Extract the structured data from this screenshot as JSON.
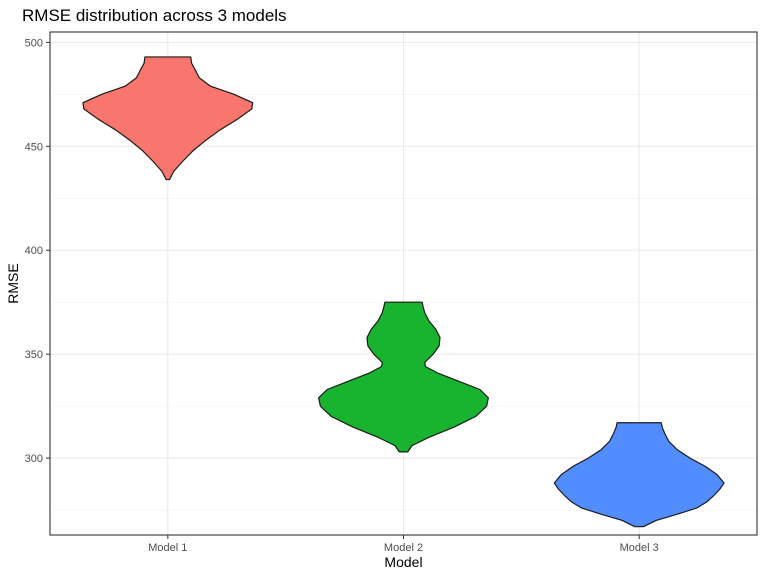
{
  "chart_data": {
    "type": "violin",
    "title": "RMSE distribution across 3 models",
    "xlabel": "Model",
    "ylabel": "RMSE",
    "ylim": [
      263,
      505
    ],
    "yticks": [
      300,
      350,
      400,
      450,
      500
    ],
    "grid": true,
    "legend": "none",
    "categories": [
      "Model 1",
      "Model 2",
      "Model 3"
    ],
    "series": [
      {
        "category": "Model 1",
        "color": "#F8766D",
        "min": 434,
        "max": 493,
        "profile": [
          [
            434,
            0.02
          ],
          [
            438,
            0.07
          ],
          [
            443,
            0.18
          ],
          [
            448,
            0.3
          ],
          [
            453,
            0.45
          ],
          [
            458,
            0.62
          ],
          [
            463,
            0.82
          ],
          [
            468,
            0.99
          ],
          [
            471,
            1.0
          ],
          [
            475,
            0.78
          ],
          [
            479,
            0.5
          ],
          [
            483,
            0.37
          ],
          [
            487,
            0.32
          ],
          [
            490,
            0.28
          ],
          [
            493,
            0.27
          ]
        ]
      },
      {
        "category": "Model 2",
        "color": "#18B32F",
        "min": 303,
        "max": 375,
        "profile": [
          [
            303,
            0.05
          ],
          [
            306,
            0.1
          ],
          [
            310,
            0.3
          ],
          [
            315,
            0.6
          ],
          [
            320,
            0.85
          ],
          [
            325,
            0.98
          ],
          [
            329,
            1.0
          ],
          [
            333,
            0.9
          ],
          [
            337,
            0.65
          ],
          [
            341,
            0.4
          ],
          [
            344,
            0.26
          ],
          [
            346,
            0.25
          ],
          [
            350,
            0.35
          ],
          [
            354,
            0.42
          ],
          [
            358,
            0.43
          ],
          [
            362,
            0.38
          ],
          [
            366,
            0.3
          ],
          [
            370,
            0.25
          ],
          [
            373,
            0.23
          ],
          [
            375,
            0.22
          ]
        ]
      },
      {
        "category": "Model 3",
        "color": "#518DFF",
        "min": 267,
        "max": 317,
        "profile": [
          [
            267,
            0.05
          ],
          [
            270,
            0.2
          ],
          [
            273,
            0.45
          ],
          [
            276,
            0.68
          ],
          [
            279,
            0.8
          ],
          [
            282,
            0.88
          ],
          [
            285,
            0.95
          ],
          [
            288,
            1.0
          ],
          [
            292,
            0.92
          ],
          [
            296,
            0.78
          ],
          [
            300,
            0.6
          ],
          [
            304,
            0.45
          ],
          [
            308,
            0.35
          ],
          [
            312,
            0.3
          ],
          [
            315,
            0.27
          ],
          [
            317,
            0.26
          ]
        ]
      }
    ]
  }
}
